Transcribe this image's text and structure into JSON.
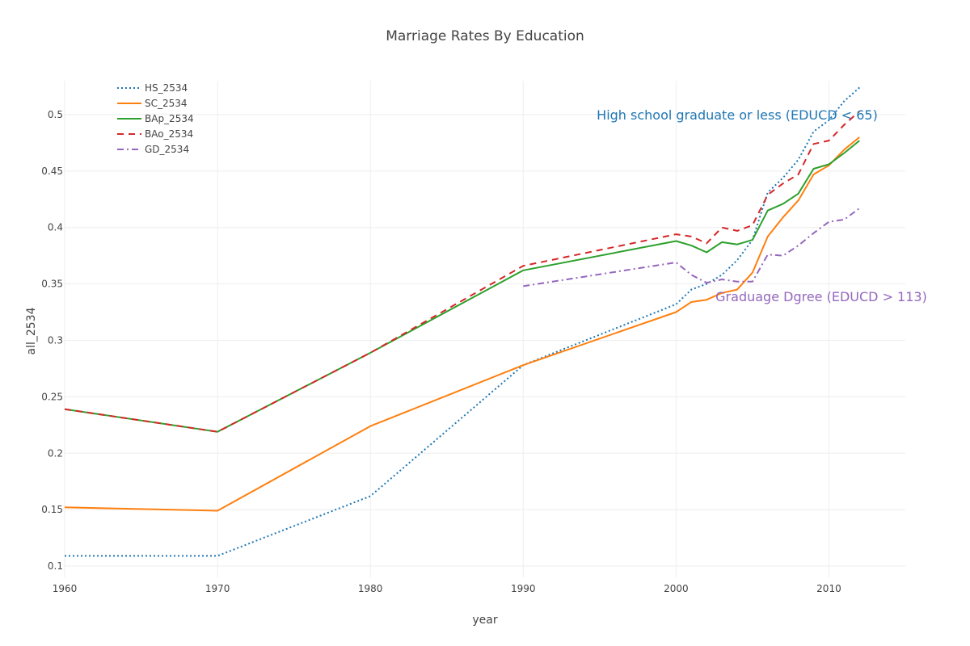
{
  "chart_data": {
    "type": "line",
    "title": "Marriage Rates By Education",
    "xlabel": "year",
    "ylabel": "all_2534",
    "xlim": [
      1960,
      2015
    ],
    "ylim": [
      0.09,
      0.53
    ],
    "x_ticks": [
      1960,
      1970,
      1980,
      1990,
      2000,
      2010
    ],
    "y_ticks": [
      0.1,
      0.15,
      0.2,
      0.25,
      0.3,
      0.35,
      0.4,
      0.45,
      0.5
    ],
    "x_tick_labels": [
      "1960",
      "1970",
      "1980",
      "1990",
      "2000",
      "2010"
    ],
    "y_tick_labels": [
      "0.1",
      "0.15",
      "0.2",
      "0.25",
      "0.3",
      "0.35",
      "0.4",
      "0.45",
      "0.5"
    ],
    "grid": true,
    "legend_position": "top-left",
    "series": [
      {
        "name": "HS_2534",
        "color": "#1f77b4",
        "dash": "dot",
        "x": [
          1960,
          1970,
          1980,
          1990,
          2000,
          2001,
          2002,
          2003,
          2004,
          2005,
          2006,
          2007,
          2008,
          2009,
          2010,
          2011,
          2012
        ],
        "y": [
          0.109,
          0.109,
          0.162,
          0.278,
          0.332,
          0.345,
          0.35,
          0.358,
          0.371,
          0.389,
          0.431,
          0.444,
          0.46,
          0.485,
          0.495,
          0.512,
          0.524
        ]
      },
      {
        "name": "SC_2534",
        "color": "#ff7f0e",
        "dash": "solid",
        "x": [
          1960,
          1970,
          1980,
          1990,
          2000,
          2001,
          2002,
          2003,
          2004,
          2005,
          2006,
          2007,
          2008,
          2009,
          2010,
          2011,
          2012
        ],
        "y": [
          0.152,
          0.149,
          0.224,
          0.278,
          0.325,
          0.334,
          0.336,
          0.342,
          0.345,
          0.36,
          0.392,
          0.409,
          0.424,
          0.447,
          0.455,
          0.469,
          0.48
        ]
      },
      {
        "name": "BAp_2534",
        "color": "#2ca02c",
        "dash": "solid",
        "x": [
          1960,
          1970,
          1980,
          1990,
          2000,
          2001,
          2002,
          2003,
          2004,
          2005,
          2006,
          2007,
          2008,
          2009,
          2010,
          2011,
          2012
        ],
        "y": [
          0.239,
          0.219,
          0.289,
          0.362,
          0.388,
          0.384,
          0.378,
          0.387,
          0.385,
          0.389,
          0.415,
          0.421,
          0.43,
          0.452,
          0.456,
          0.466,
          0.477
        ]
      },
      {
        "name": "BAo_2534",
        "color": "#d62728",
        "dash": "dash",
        "x": [
          1960,
          1970,
          1980,
          1990,
          2000,
          2001,
          2002,
          2003,
          2004,
          2005,
          2006,
          2007,
          2008,
          2009,
          2010,
          2011,
          2012
        ],
        "y": [
          0.239,
          0.219,
          0.289,
          0.366,
          0.394,
          0.392,
          0.386,
          0.4,
          0.397,
          0.402,
          0.429,
          0.439,
          0.447,
          0.474,
          0.477,
          0.491,
          0.503
        ]
      },
      {
        "name": "GD_2534",
        "color": "#9467bd",
        "dash": "dashdot",
        "x": [
          1990,
          2000,
          2001,
          2002,
          2003,
          2004,
          2005,
          2006,
          2007,
          2008,
          2009,
          2010,
          2011,
          2012
        ],
        "y": [
          0.348,
          0.369,
          0.358,
          0.351,
          0.354,
          0.352,
          0.352,
          0.376,
          0.375,
          0.384,
          0.395,
          0.405,
          0.407,
          0.417
        ]
      }
    ],
    "annotations": [
      {
        "text": "High school graduate or less (EDUCD < 65)",
        "color": "#1f77b4",
        "x": 2004,
        "y": 0.5
      },
      {
        "text": "Graduage Dgree (EDUCD > 113)",
        "color": "#9467bd",
        "x": 2009.5,
        "y": 0.339
      }
    ]
  }
}
